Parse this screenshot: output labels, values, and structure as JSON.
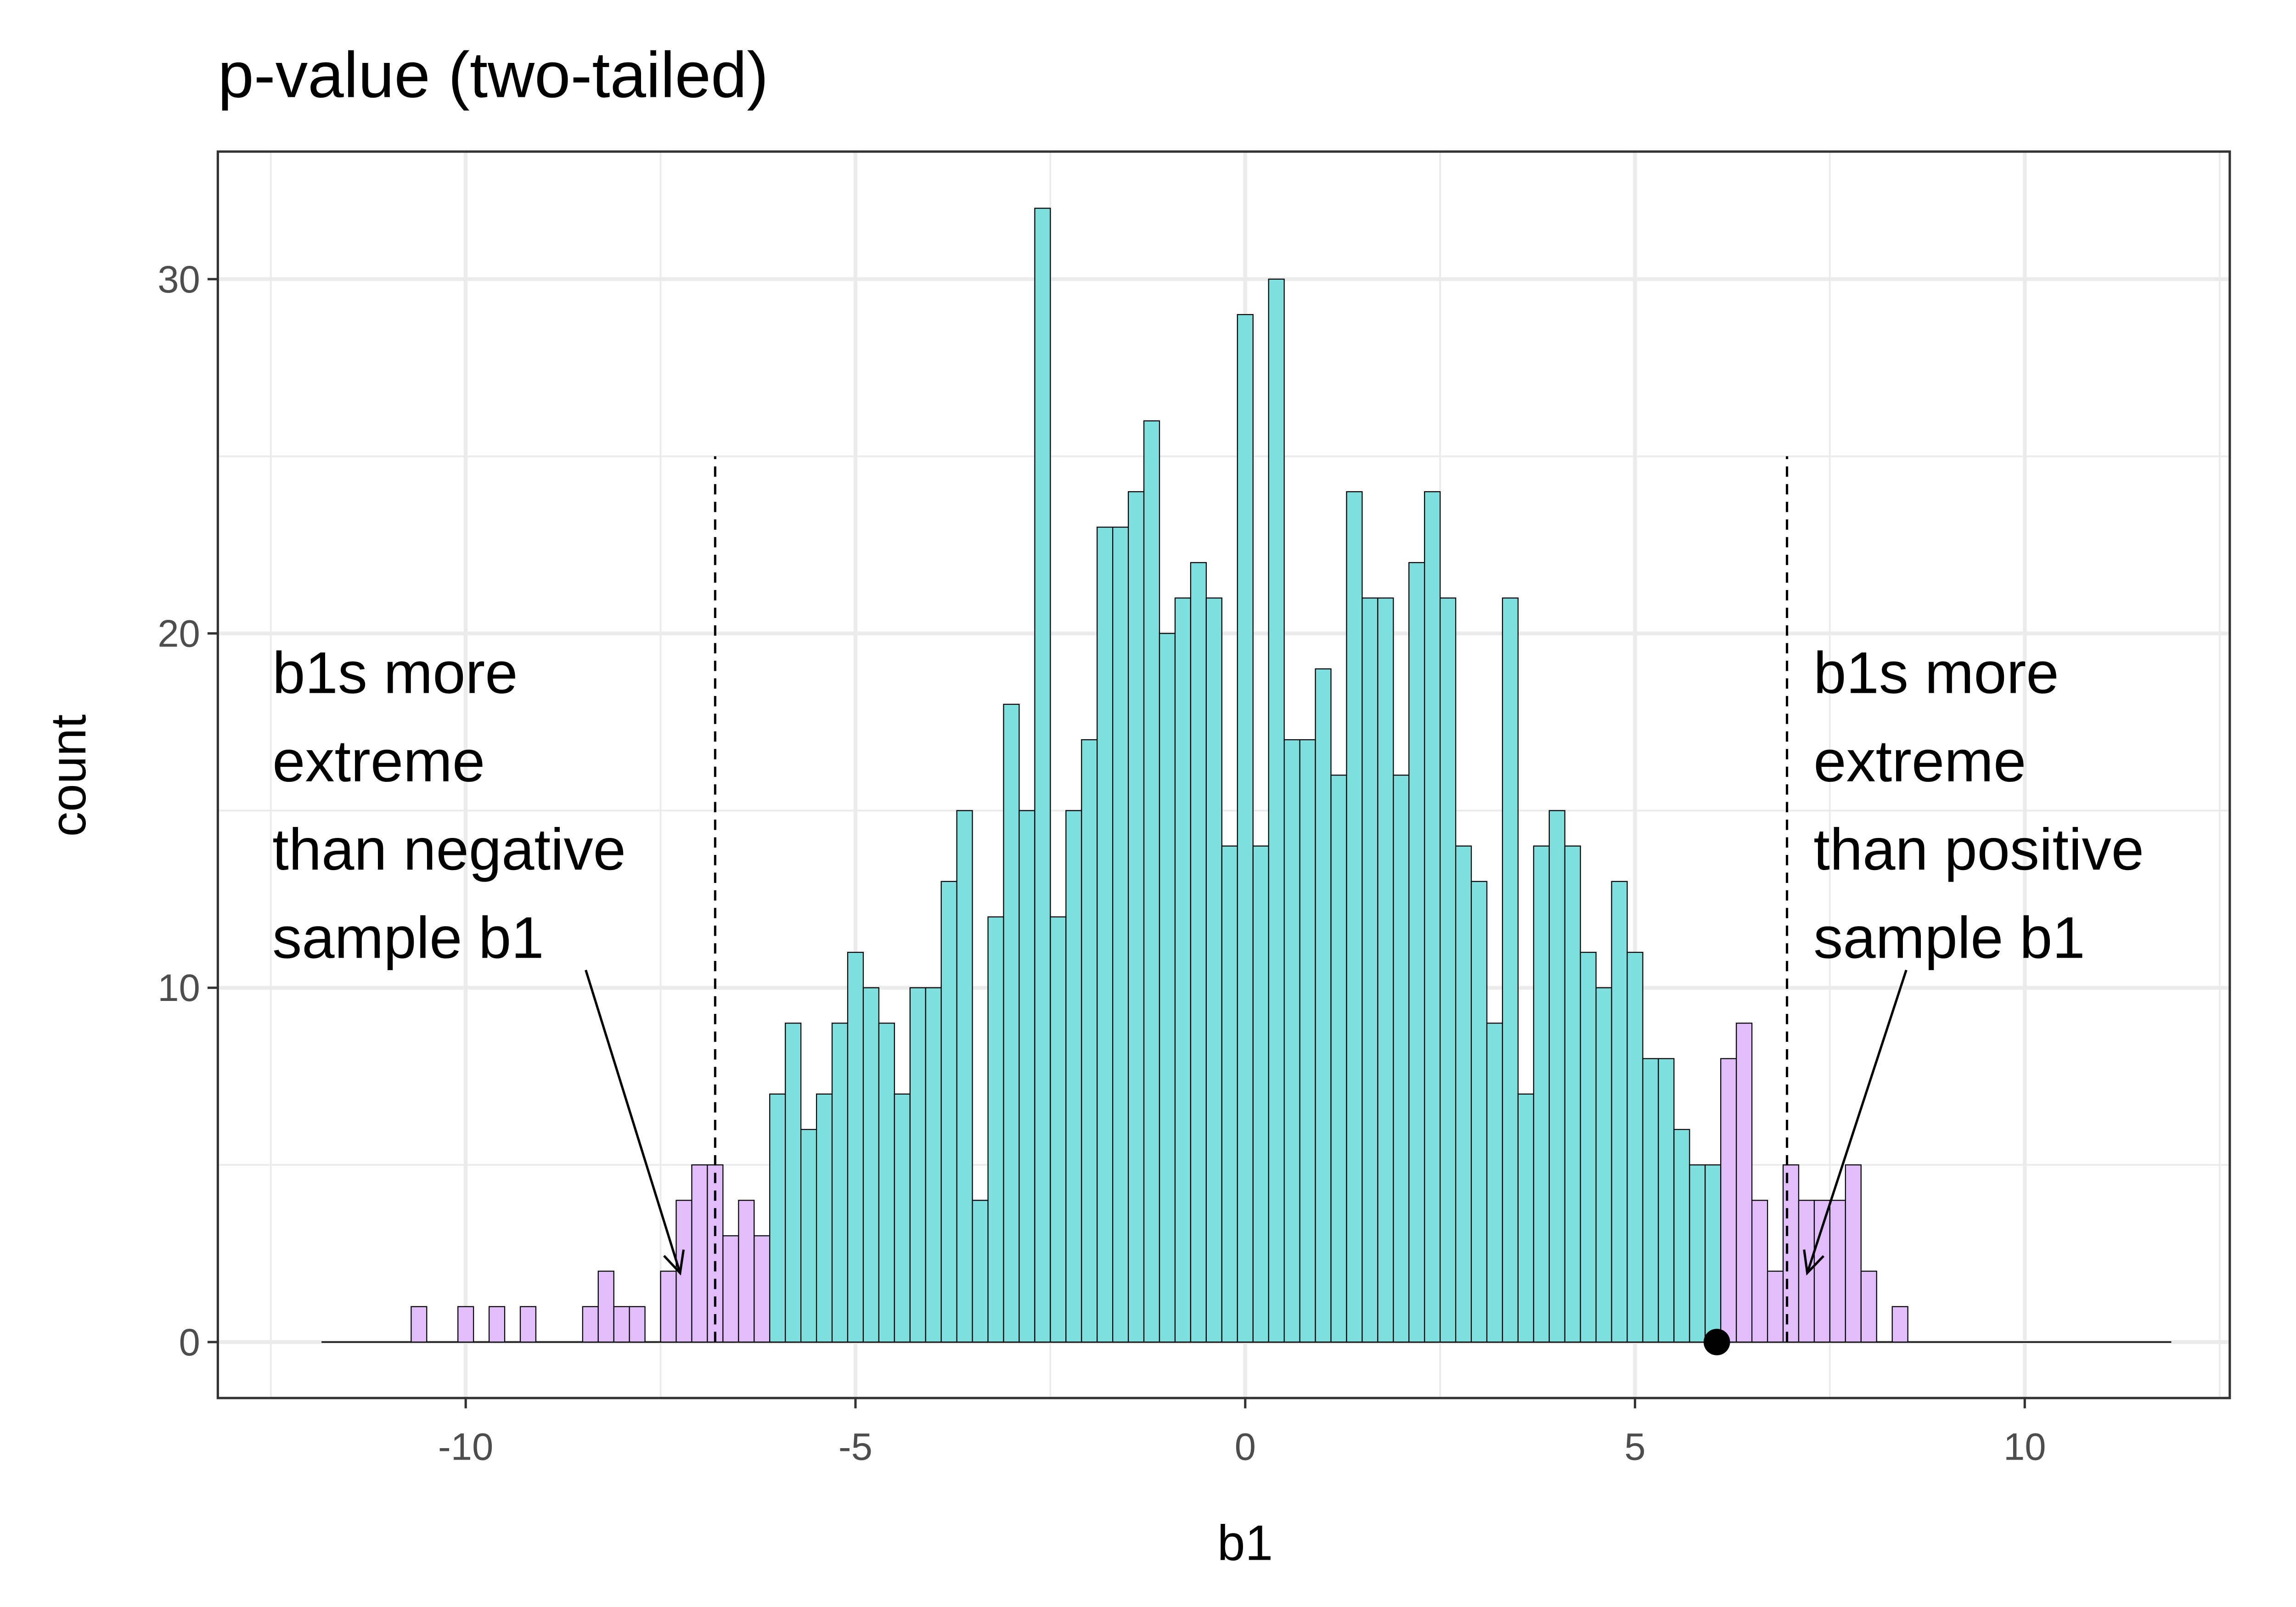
{
  "chart_data": {
    "type": "bar",
    "title": "p-value (two-tailed)",
    "xlabel": "b1",
    "ylabel": "count",
    "xlim": [
      -13.18,
      12.63
    ],
    "ylim": [
      -1.58,
      33.6
    ],
    "x_ticks": [
      -10,
      -5,
      0,
      5,
      10
    ],
    "x_tick_labels": [
      "-10",
      "-5",
      "0",
      "5",
      "10"
    ],
    "y_ticks": [
      0,
      10,
      20,
      30
    ],
    "y_tick_labels": [
      "0",
      "10",
      "20",
      "30"
    ],
    "grid": true,
    "bin_width": 0.2,
    "first_bin_center": -10.6,
    "counts": [
      1,
      0,
      0,
      1,
      0,
      1,
      0,
      1,
      0,
      0,
      0,
      1,
      2,
      1,
      1,
      0,
      2,
      4,
      5,
      5,
      3,
      4,
      3,
      7,
      9,
      6,
      7,
      9,
      11,
      10,
      9,
      7,
      10,
      10,
      13,
      15,
      4,
      12,
      18,
      15,
      32,
      12,
      15,
      17,
      23,
      23,
      24,
      26,
      20,
      21,
      22,
      21,
      14,
      29,
      14,
      30,
      17,
      17,
      19,
      16,
      24,
      21,
      21,
      16,
      22,
      24,
      21,
      14,
      13,
      9,
      21,
      7,
      14,
      15,
      14,
      11,
      10,
      13,
      11,
      8,
      8,
      6,
      5,
      5,
      8,
      9,
      4,
      2,
      5,
      4,
      4,
      4,
      5,
      2,
      0,
      1
    ],
    "baseline_range": [
      -11.85,
      11.88
    ],
    "sample_b1": 6.05,
    "colors": {
      "typical": "#7fdfdf",
      "extreme": "#e1bdfc",
      "outline": "#000000"
    },
    "cutoff_lines": [
      {
        "x": -6.8,
        "y_range": [
          0,
          25
        ],
        "style": "dashed"
      },
      {
        "x": 6.95,
        "y_range": [
          0,
          25
        ],
        "style": "dashed"
      }
    ],
    "annotations": [
      {
        "lines": [
          "b1s more",
          "extreme",
          "than negative",
          "sample b1"
        ],
        "x": -12.48,
        "y": 18.9,
        "arrow_from": [
          -8.46,
          10.5
        ],
        "arrow_to": [
          -7.25,
          1.95
        ]
      },
      {
        "lines": [
          "b1s more",
          "extreme",
          "than positive",
          "sample b1"
        ],
        "x": 7.29,
        "y": 18.9,
        "arrow_from": [
          8.48,
          10.5
        ],
        "arrow_to": [
          7.21,
          1.95
        ]
      }
    ]
  }
}
